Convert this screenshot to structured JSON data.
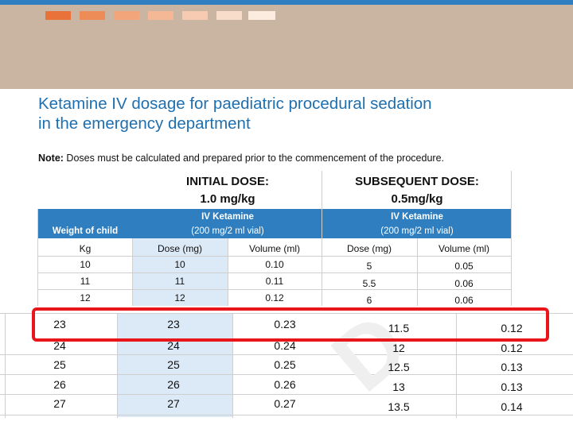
{
  "colors": {
    "header_band": "#c9b5a1",
    "accent_blue": "#2f7fc0",
    "title_blue": "#1e6fb0",
    "highlight_red": "#e8161b",
    "shade": "#dce9f6"
  },
  "swatch_colors": [
    "#e8723a",
    "#ee8c57",
    "#f2a47a",
    "#f4b896",
    "#f7cbb1",
    "#f9ddcb",
    "#fcecdf"
  ],
  "title_line1": "Ketamine IV dosage for paediatric procedural sedation",
  "title_line2": "in the emergency department",
  "note_label": "Note:",
  "note_text": " Doses must be calculated and prepared prior to the commencement of the procedure.",
  "initial_dose": {
    "title": "INITIAL DOSE:",
    "amount": "1.0 mg/kg"
  },
  "subsequent_dose": {
    "title": "SUBSEQUENT DOSE:",
    "amount": "0.5mg/kg"
  },
  "weight_header": "Weight of child",
  "drug_name": "IV Ketamine",
  "vial": "(200 mg/2 ml vial)",
  "col_kg": "Kg",
  "col_dose": "Dose (mg)",
  "col_volume": "Volume (ml)",
  "top_rows": [
    {
      "kg": "10",
      "dose": "10",
      "vol": "0.10",
      "sdose": "5",
      "svol": "0.05"
    },
    {
      "kg": "11",
      "dose": "11",
      "vol": "0.11",
      "sdose": "5.5",
      "svol": "0.06"
    },
    {
      "kg": "12",
      "dose": "12",
      "vol": "0.12",
      "sdose": "6",
      "svol": "0.06"
    }
  ],
  "bottom_rows": [
    {
      "kg": "23",
      "dose": "23",
      "vol": "0.23",
      "sdose": "11.5",
      "svol": "0.12"
    },
    {
      "kg": "24",
      "dose": "24",
      "vol": "0.24",
      "sdose": "12",
      "svol": "0.12"
    },
    {
      "kg": "25",
      "dose": "25",
      "vol": "0.25",
      "sdose": "12.5",
      "svol": "0.13"
    },
    {
      "kg": "26",
      "dose": "26",
      "vol": "0.26",
      "sdose": "13",
      "svol": "0.13"
    },
    {
      "kg": "27",
      "dose": "27",
      "vol": "0.27",
      "sdose": "13.5",
      "svol": "0.14"
    }
  ]
}
